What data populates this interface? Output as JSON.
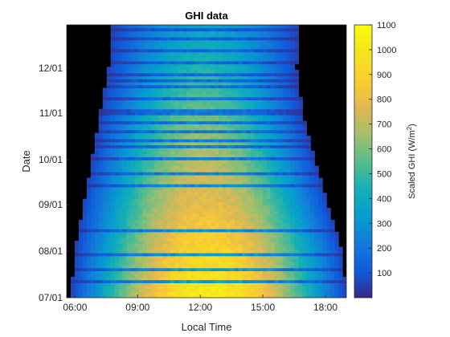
{
  "chart_data": {
    "type": "heatmap",
    "title": "GHI data",
    "xlabel": "Local Time",
    "ylabel": "Date",
    "x_ticks": [
      "06:00",
      "09:00",
      "12:00",
      "15:00",
      "18:00"
    ],
    "x_tick_hours": [
      6,
      9,
      12,
      15,
      18
    ],
    "xlim_hours": [
      5.6,
      19.0
    ],
    "y_ticks": [
      "07/01",
      "08/01",
      "09/01",
      "10/01",
      "11/01",
      "12/01"
    ],
    "y_tick_days": [
      0,
      31,
      62,
      92,
      123,
      153
    ],
    "ylim_days": [
      0,
      182
    ],
    "background_color": "#000000",
    "colorbar": {
      "label_main": "Scaled GHI (W/m",
      "label_sup": "2",
      "label_end": ")",
      "min": 0,
      "max": 1100,
      "ticks": [
        "100",
        "200",
        "300",
        "400",
        "500",
        "600",
        "700",
        "800",
        "900",
        "1000",
        "1100"
      ],
      "tick_values": [
        100,
        200,
        300,
        400,
        500,
        600,
        700,
        800,
        900,
        1000,
        1100
      ],
      "colormap": "parula"
    },
    "sun_window": [
      {
        "day": 0,
        "sunrise": 5.8,
        "sunset": 19.0
      },
      {
        "day": 31,
        "sunrise": 6.0,
        "sunset": 18.8
      },
      {
        "day": 62,
        "sunrise": 6.4,
        "sunset": 18.1
      },
      {
        "day": 92,
        "sunrise": 6.8,
        "sunset": 17.5
      },
      {
        "day": 123,
        "sunrise": 7.2,
        "sunset": 16.9
      },
      {
        "day": 153,
        "sunrise": 7.6,
        "sunset": 16.6
      },
      {
        "day": 182,
        "sunrise": 7.8,
        "sunset": 16.7
      }
    ]
  }
}
